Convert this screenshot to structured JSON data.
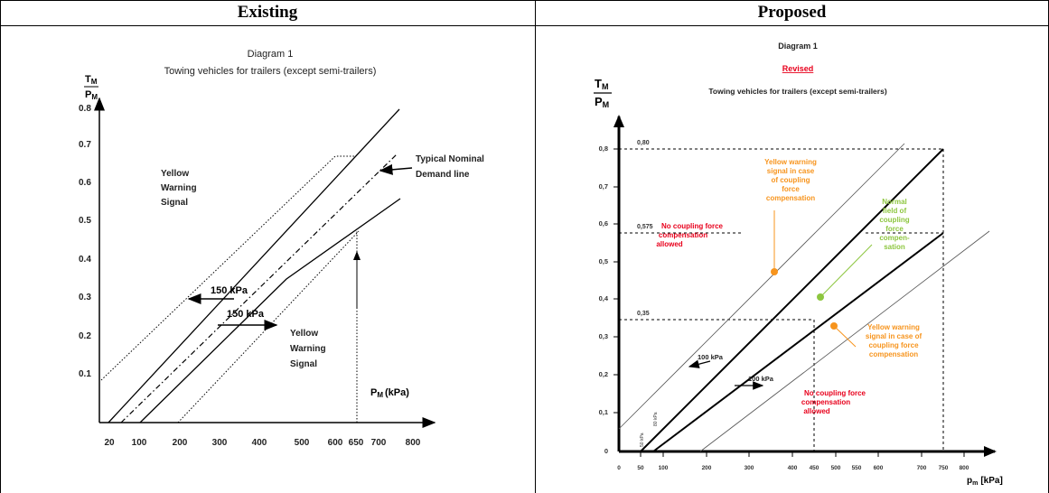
{
  "headers": {
    "left": "Existing",
    "right": "Proposed"
  },
  "existing": {
    "title": "Diagram 1",
    "subtitle": "Towing vehicles for trailers (except semi-trailers)",
    "y_label_num": "T",
    "y_label_num_sub": "M",
    "y_label_den": "P",
    "y_label_den_sub": "M",
    "y_ticks": [
      "0.8",
      "0.7",
      "0.6",
      "0.5",
      "0.4",
      "0.3",
      "0.2",
      "0.1"
    ],
    "x_ticks": [
      "20",
      "100",
      "200",
      "300",
      "400",
      "500",
      "600",
      "650",
      "700",
      "800"
    ],
    "x_label": "P",
    "x_label_sub": "M",
    "x_label_unit": "(kPa)",
    "label_yellow_1": [
      "Yellow",
      "Warning",
      "Signal"
    ],
    "label_yellow_2": [
      "Yellow",
      "Warning",
      "Signal"
    ],
    "label_nominal": [
      "Typical Nominal",
      "Demand line"
    ],
    "arrow_label_1": "150 kPa",
    "arrow_label_2": "150 kPa"
  },
  "proposed": {
    "title": "Diagram 1",
    "revised": "Revised",
    "subtitle": "Towing vehicles for trailers (except semi-trailers)",
    "y_label_num": "T",
    "y_label_num_sub": "M",
    "y_label_den": "P",
    "y_label_den_sub": "M",
    "y_ticks": [
      "0,8",
      "0,7",
      "0,6",
      "0,5",
      "0,4",
      "0,3",
      "0,2",
      "0,1",
      "0"
    ],
    "x_ticks": [
      "0",
      "50",
      "100",
      "200",
      "300",
      "400",
      "450",
      "500",
      "550",
      "600",
      "700",
      "750",
      "800"
    ],
    "x_label": "p",
    "x_label_sub": "m",
    "x_label_unit": "[kPa]",
    "ref_080": "0,80",
    "ref_0575": "0,575",
    "ref_035": "0,35",
    "label_yellow_top": [
      "Yellow warning",
      "signal in case",
      "of coupling",
      "force",
      "compensation"
    ],
    "label_normal": [
      "Normal",
      "field of",
      "coupling",
      "force",
      "compen-",
      "sation"
    ],
    "label_no_coupling_top": [
      "No coupling force",
      "compensation",
      "allowed"
    ],
    "label_yellow_bottom": [
      "Yellow warning",
      "signal in case of",
      "coupling force",
      "compensation"
    ],
    "label_no_coupling_bottom": [
      "No coupling force",
      "compensation",
      "allowed"
    ],
    "arrow_label_1": "100 kPa",
    "arrow_label_2": "100 kPa",
    "small_1": "50 kPa",
    "small_2": "80 kPa",
    "colors": {
      "red": "#e8001c",
      "orange": "#f7941d",
      "green": "#8dc63f"
    }
  }
}
